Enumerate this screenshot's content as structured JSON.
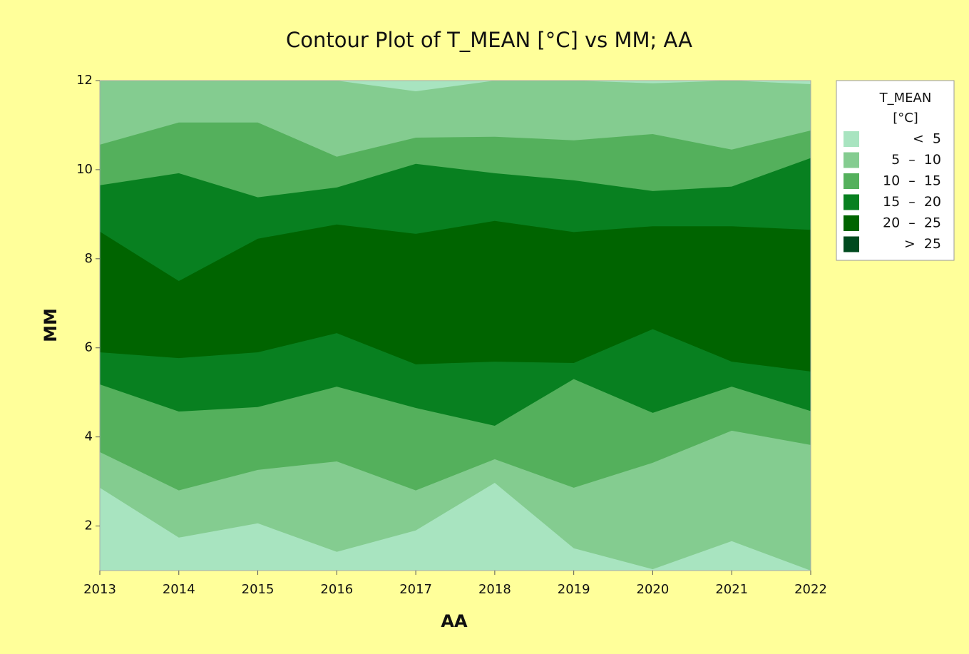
{
  "chart_data": {
    "type": "contour",
    "title": "Contour Plot of T_MEAN [°C] vs MM; AA",
    "x_label": "AA",
    "y_label": "MM",
    "x": [
      2013,
      2014,
      2015,
      2016,
      2017,
      2018,
      2019,
      2020,
      2021,
      2022
    ],
    "xlim": [
      2013,
      2022
    ],
    "xticks": [
      2013,
      2014,
      2015,
      2016,
      2017,
      2018,
      2019,
      2020,
      2021,
      2022
    ],
    "ylim": [
      1,
      12
    ],
    "yticks": [
      2,
      4,
      6,
      8,
      10,
      12
    ],
    "legend_title": [
      "T_MEAN",
      "[°C]"
    ],
    "legend_position": "right",
    "bands": [
      {
        "name": "<  5",
        "color": "#a8e4c0"
      },
      {
        "name": "5  –  10",
        "color": "#84cc90"
      },
      {
        "name": "10  –  15",
        "color": "#54b05c"
      },
      {
        "name": "15  –  20",
        "color": "#088020"
      },
      {
        "name": "20  –  25",
        "color": "#006400"
      },
      {
        "name": ">  25",
        "color": "#004a1e"
      }
    ],
    "contours": [
      {
        "level": 5,
        "lower": [
          2.86,
          1.74,
          2.06,
          1.42,
          1.9,
          2.97,
          1.5,
          1.03,
          1.66,
          1.0
        ],
        "upper": [
          12,
          12,
          12,
          12,
          11.76,
          12,
          12,
          11.94,
          12,
          11.92
        ]
      },
      {
        "level": 10,
        "lower": [
          3.66,
          2.8,
          3.26,
          3.45,
          2.8,
          3.5,
          2.86,
          3.42,
          4.14,
          3.82
        ],
        "upper": [
          10.56,
          11.06,
          11.06,
          10.29,
          10.72,
          10.74,
          10.66,
          10.8,
          10.45,
          10.88
        ]
      },
      {
        "level": 15,
        "lower": [
          5.18,
          4.57,
          4.67,
          5.13,
          4.65,
          4.25,
          5.3,
          4.54,
          5.13,
          4.58
        ],
        "upper": [
          9.65,
          9.92,
          9.38,
          9.6,
          10.13,
          9.92,
          9.76,
          9.52,
          9.62,
          10.26
        ]
      },
      {
        "level": 20,
        "lower": [
          5.9,
          5.77,
          5.9,
          6.33,
          5.63,
          5.69,
          5.66,
          6.42,
          5.69,
          5.47
        ],
        "upper": [
          8.61,
          7.5,
          8.45,
          8.77,
          8.56,
          8.85,
          8.6,
          8.73,
          8.73,
          8.65
        ]
      }
    ]
  }
}
